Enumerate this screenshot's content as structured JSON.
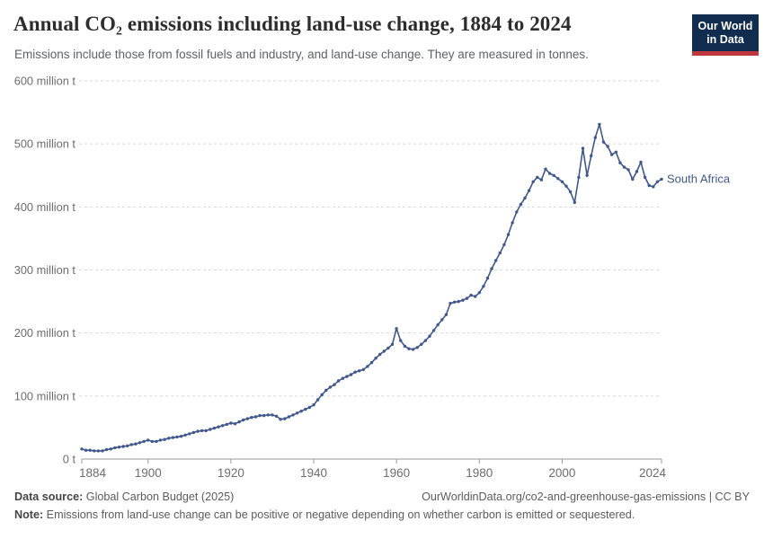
{
  "header": {
    "title": "Annual CO₂ emissions including land-use change, 1884 to 2024",
    "subtitle": "Emissions include those from fossil fuels and industry, and land-use change. They are measured in tonnes.",
    "logo_line1": "Our World",
    "logo_line2": "in Data"
  },
  "chart_data": {
    "type": "line",
    "title": "Annual CO₂ emissions including land-use change, 1884 to 2024",
    "entity": "South Africa",
    "series_label": "South Africa",
    "unit": "million tonnes",
    "xlim": [
      1884,
      2024
    ],
    "ylim": [
      0,
      600
    ],
    "grid": "dashed-horizontal",
    "legend_position": "end-of-line",
    "line_color": "#40588c",
    "x_ticks": [
      1884,
      1900,
      1920,
      1940,
      1960,
      1980,
      2000,
      2024
    ],
    "y_ticks": [
      {
        "value": 0,
        "label": "0 t"
      },
      {
        "value": 100,
        "label": "100 million t"
      },
      {
        "value": 200,
        "label": "200 million t"
      },
      {
        "value": 300,
        "label": "300 million t"
      },
      {
        "value": 400,
        "label": "400 million t"
      },
      {
        "value": 500,
        "label": "500 million t"
      },
      {
        "value": 600,
        "label": "600 million t"
      }
    ],
    "x_start_year": 1884,
    "values": [
      16,
      14,
      14,
      13,
      13,
      13,
      15,
      16,
      18,
      19,
      20,
      21,
      23,
      24,
      26,
      28,
      30,
      28,
      28,
      30,
      31,
      33,
      34,
      35,
      36,
      38,
      40,
      42,
      44,
      45,
      45,
      47,
      49,
      51,
      53,
      55,
      57,
      56,
      59,
      62,
      64,
      66,
      67,
      69,
      69,
      70,
      70,
      68,
      63,
      64,
      67,
      70,
      73,
      76,
      79,
      82,
      86,
      94,
      102,
      109,
      114,
      118,
      124,
      128,
      131,
      134,
      138,
      140,
      142,
      147,
      153,
      160,
      166,
      171,
      176,
      182,
      207,
      188,
      179,
      175,
      174,
      177,
      182,
      188,
      195,
      204,
      213,
      221,
      229,
      247,
      249,
      250,
      252,
      255,
      260,
      258,
      264,
      274,
      287,
      302,
      315,
      327,
      340,
      356,
      375,
      392,
      404,
      414,
      426,
      440,
      447,
      443,
      460,
      453,
      450,
      445,
      440,
      433,
      424,
      407,
      447,
      493,
      450,
      481,
      510,
      531,
      503,
      496,
      483,
      487,
      470,
      463,
      459,
      444,
      456,
      471,
      447,
      434,
      432,
      440,
      444
    ]
  },
  "footer": {
    "source_label": "Data source:",
    "source_text": " Global Carbon Budget (2025)",
    "attribution": "OurWorldinData.org/co2-and-greenhouse-gas-emissions | CC BY",
    "note_label": "Note:",
    "note_text": " Emissions from land-use change can be positive or negative depending on whether carbon is emitted or sequestered."
  },
  "colors": {
    "line": "#40588c",
    "gridline": "#dadada",
    "axis": "#9a9a9a",
    "tick_label": "#6d6d6d",
    "logo_bg": "#102d50",
    "logo_bar": "#c0383f"
  }
}
